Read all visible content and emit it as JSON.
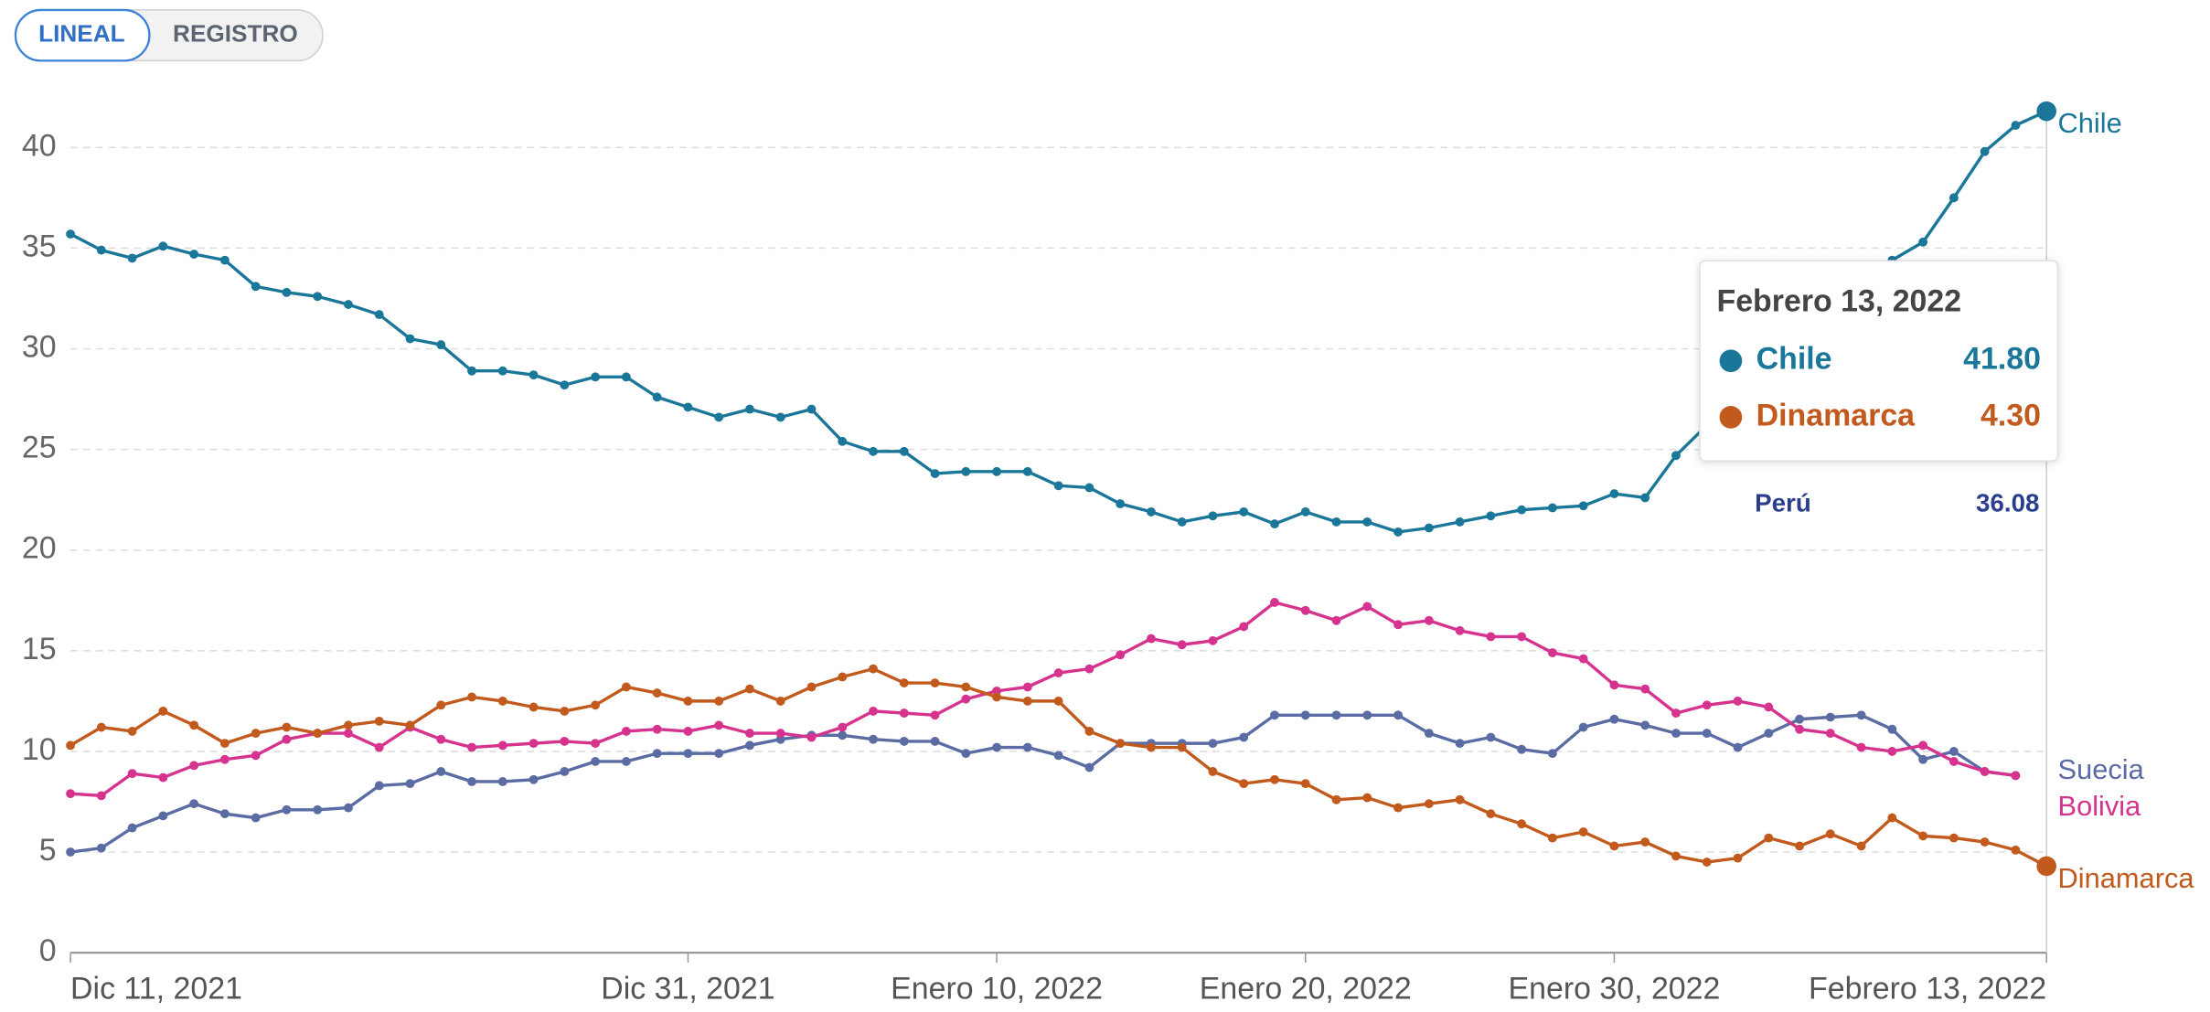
{
  "controls": {
    "buttons": [
      "LINEAL",
      "REGISTRO"
    ]
  },
  "chart_data": {
    "type": "line",
    "log_scale": false,
    "grid": true,
    "x": [
      "2021-12-11",
      "2021-12-12",
      "2021-12-13",
      "2021-12-14",
      "2021-12-15",
      "2021-12-16",
      "2021-12-17",
      "2021-12-18",
      "2021-12-19",
      "2021-12-20",
      "2021-12-21",
      "2021-12-22",
      "2021-12-23",
      "2021-12-24",
      "2021-12-25",
      "2021-12-26",
      "2021-12-27",
      "2021-12-28",
      "2021-12-29",
      "2021-12-30",
      "2021-12-31",
      "2022-01-01",
      "2022-01-02",
      "2022-01-03",
      "2022-01-04",
      "2022-01-05",
      "2022-01-06",
      "2022-01-07",
      "2022-01-08",
      "2022-01-09",
      "2022-01-10",
      "2022-01-11",
      "2022-01-12",
      "2022-01-13",
      "2022-01-14",
      "2022-01-15",
      "2022-01-16",
      "2022-01-17",
      "2022-01-18",
      "2022-01-19",
      "2022-01-20",
      "2022-01-21",
      "2022-01-22",
      "2022-01-23",
      "2022-01-24",
      "2022-01-25",
      "2022-01-26",
      "2022-01-27",
      "2022-01-28",
      "2022-01-29",
      "2022-01-30",
      "2022-01-31",
      "2022-02-01",
      "2022-02-02",
      "2022-02-03",
      "2022-02-04",
      "2022-02-05",
      "2022-02-06",
      "2022-02-07",
      "2022-02-08",
      "2022-02-09",
      "2022-02-10",
      "2022-02-11",
      "2022-02-12",
      "2022-02-13"
    ],
    "xlim": [
      "2021-12-11",
      "2022-02-13"
    ],
    "xticks": [
      {
        "value": "2021-12-11",
        "label": "Dic 11, 2021"
      },
      {
        "value": "2021-12-31",
        "label": "Dic 31, 2021"
      },
      {
        "value": "2022-01-10",
        "label": "Enero 10, 2022"
      },
      {
        "value": "2022-01-20",
        "label": "Enero 20, 2022"
      },
      {
        "value": "2022-01-30",
        "label": "Enero 30, 2022"
      },
      {
        "value": "2022-02-13",
        "label": "Febrero 13, 2022"
      }
    ],
    "ylim": [
      0,
      42
    ],
    "yticks": [
      0,
      5,
      10,
      15,
      20,
      25,
      30,
      35,
      40
    ],
    "series": [
      {
        "name": "Chile",
        "color": "#1a7799",
        "values": [
          35.7,
          34.9,
          34.5,
          35.1,
          34.7,
          34.4,
          33.1,
          32.8,
          32.6,
          32.2,
          31.7,
          30.5,
          30.2,
          28.9,
          28.9,
          28.7,
          28.2,
          28.6,
          28.6,
          27.6,
          27.1,
          26.6,
          27.0,
          26.6,
          27.0,
          25.4,
          24.9,
          24.9,
          23.8,
          23.9,
          23.9,
          23.9,
          23.2,
          23.1,
          22.3,
          21.9,
          21.4,
          21.7,
          21.9,
          21.3,
          21.9,
          21.4,
          21.4,
          20.9,
          21.1,
          21.4,
          21.7,
          22.0,
          22.1,
          22.2,
          22.8,
          22.6,
          24.7,
          26.2,
          27.6,
          29.0,
          30.4,
          31.7,
          33.0,
          34.4,
          35.3,
          37.5,
          39.8,
          41.1,
          41.8
        ]
      },
      {
        "name": "Dinamarca",
        "color": "#c15a1c",
        "values": [
          10.3,
          11.2,
          11.0,
          12.0,
          11.3,
          10.4,
          10.9,
          11.2,
          10.9,
          11.3,
          11.5,
          11.3,
          12.3,
          12.7,
          12.5,
          12.2,
          12.0,
          12.3,
          13.2,
          12.9,
          12.5,
          12.5,
          13.1,
          12.5,
          13.2,
          13.7,
          14.1,
          13.4,
          13.4,
          13.2,
          12.7,
          12.5,
          12.5,
          11.0,
          10.4,
          10.2,
          10.2,
          9.0,
          8.4,
          8.6,
          8.4,
          7.6,
          7.7,
          7.2,
          7.4,
          7.6,
          6.9,
          6.4,
          5.7,
          6.0,
          5.3,
          5.5,
          4.8,
          4.5,
          4.7,
          5.7,
          5.3,
          5.9,
          5.3,
          6.7,
          5.8,
          5.7,
          5.5,
          5.1,
          4.3
        ]
      },
      {
        "name": "Suecia",
        "color": "#5a6ca3",
        "values": [
          5.0,
          5.2,
          6.2,
          6.8,
          7.4,
          6.9,
          6.7,
          7.1,
          7.1,
          7.2,
          8.3,
          8.4,
          9.0,
          8.5,
          8.5,
          8.6,
          9.0,
          9.5,
          9.5,
          9.9,
          9.9,
          9.9,
          10.3,
          10.6,
          10.8,
          10.8,
          10.6,
          10.5,
          10.5,
          9.9,
          10.2,
          10.2,
          9.8,
          9.2,
          10.4,
          10.4,
          10.4,
          10.4,
          10.7,
          11.8,
          11.8,
          11.8,
          11.8,
          11.8,
          10.9,
          10.4,
          10.7,
          10.1,
          9.9,
          11.2,
          11.6,
          11.3,
          10.9,
          10.9,
          10.2,
          10.9,
          11.6,
          11.7,
          11.8,
          11.1,
          9.6,
          10.0,
          9.0,
          8.8,
          null
        ]
      },
      {
        "name": "Bolivia",
        "color": "#d6338f",
        "values": [
          7.9,
          7.8,
          8.9,
          8.7,
          9.3,
          9.6,
          9.8,
          10.6,
          10.9,
          10.9,
          10.2,
          11.2,
          10.6,
          10.2,
          10.3,
          10.4,
          10.5,
          10.4,
          11.0,
          11.1,
          11.0,
          11.3,
          10.9,
          10.9,
          10.7,
          11.2,
          12.0,
          11.9,
          11.8,
          12.6,
          13.0,
          13.2,
          13.9,
          14.1,
          14.8,
          15.6,
          15.3,
          15.5,
          16.2,
          17.4,
          17.0,
          16.5,
          17.2,
          16.3,
          16.5,
          16.0,
          15.7,
          15.7,
          14.9,
          14.6,
          13.3,
          13.1,
          11.9,
          12.3,
          12.5,
          12.2,
          11.1,
          10.9,
          10.2,
          10.0,
          10.3,
          9.5,
          9.0,
          8.8,
          null
        ]
      }
    ],
    "tooltip": {
      "title": "Febrero 13, 2022",
      "rows": [
        {
          "name": "Chile",
          "value": "41.80",
          "color": "#1a7799"
        },
        {
          "name": "Dinamarca",
          "value": "4.30",
          "color": "#c15a1c"
        }
      ],
      "extra_row": {
        "name": "Perú",
        "value": "36.08",
        "color": "#2b3e8e"
      }
    }
  }
}
